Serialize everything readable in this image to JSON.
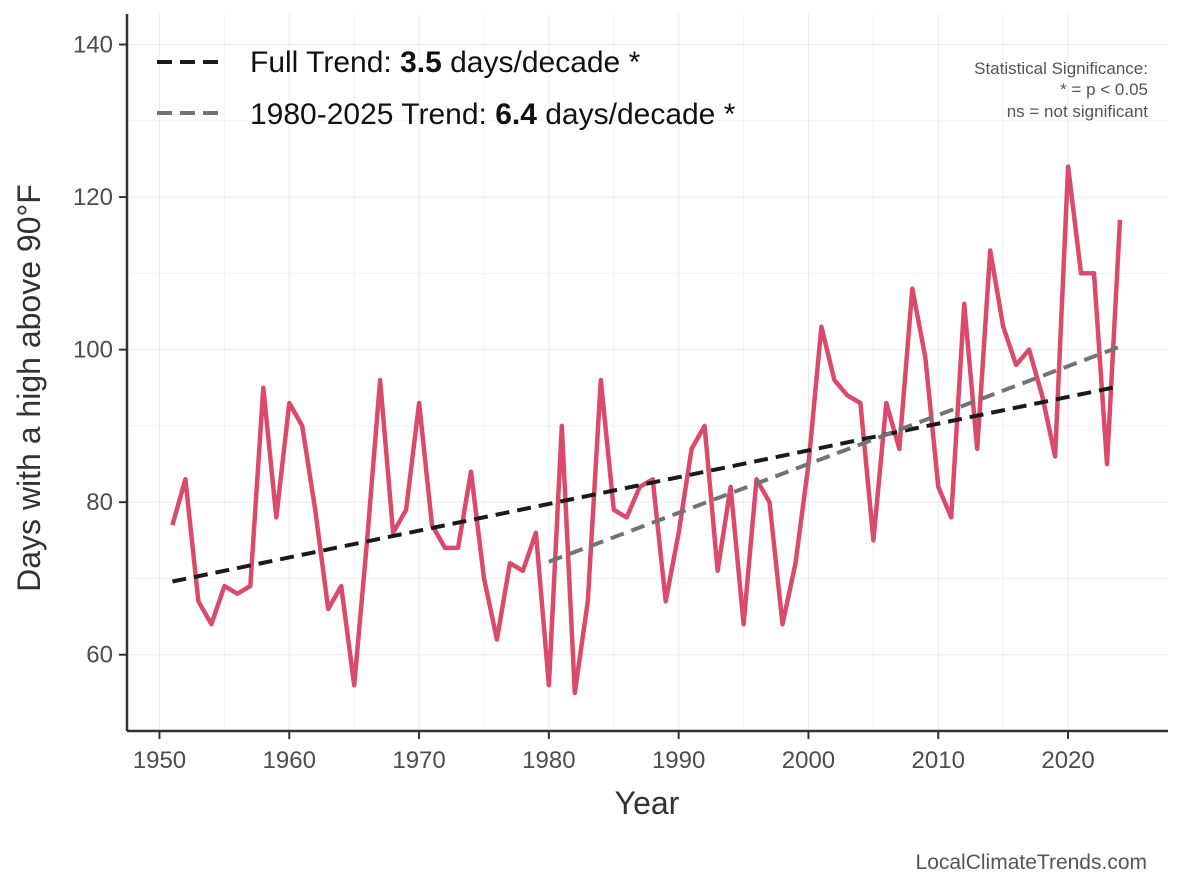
{
  "chart_data": {
    "type": "line",
    "xlabel": "Year",
    "ylabel": "Days with a high above 90°F",
    "xlim": [
      1947.5,
      2027.7
    ],
    "ylim": [
      50,
      144
    ],
    "x_ticks": [
      1950,
      1960,
      1970,
      1980,
      1990,
      2000,
      2010,
      2020
    ],
    "y_ticks": [
      60,
      80,
      100,
      120,
      140
    ],
    "grid": true,
    "legend_position": "top-left",
    "series": [
      {
        "color": "#dc4a6b",
        "x": [
          1951,
          1952,
          1953,
          1954,
          1955,
          1956,
          1957,
          1958,
          1959,
          1960,
          1961,
          1962,
          1963,
          1964,
          1965,
          1966,
          1967,
          1968,
          1969,
          1970,
          1971,
          1972,
          1973,
          1974,
          1975,
          1976,
          1977,
          1978,
          1979,
          1980,
          1981,
          1982,
          1983,
          1984,
          1985,
          1986,
          1987,
          1988,
          1989,
          1990,
          1991,
          1992,
          1993,
          1994,
          1995,
          1996,
          1997,
          1998,
          1999,
          2000,
          2001,
          2002,
          2003,
          2004,
          2005,
          2006,
          2007,
          2008,
          2009,
          2010,
          2011,
          2012,
          2013,
          2014,
          2015,
          2016,
          2017,
          2018,
          2019,
          2020,
          2021,
          2022,
          2023,
          2024
        ],
        "values": [
          77,
          83,
          67,
          64,
          69,
          68,
          69,
          95,
          78,
          93,
          90,
          79,
          66,
          69,
          56,
          75,
          96,
          76,
          79,
          93,
          77,
          74,
          74,
          84,
          70,
          62,
          72,
          71,
          76,
          56,
          90,
          55,
          67,
          96,
          79,
          78,
          82,
          83,
          67,
          76,
          87,
          90,
          71,
          82,
          64,
          83,
          80,
          64,
          72,
          85,
          103,
          96,
          94,
          93,
          75,
          93,
          87,
          108,
          99,
          82,
          78,
          106,
          87,
          113,
          103,
          98,
          100,
          94,
          86,
          124,
          110,
          110,
          85,
          117
        ]
      },
      {
        "name": "Full Trend",
        "color": "#1a1a1a",
        "dash": true,
        "x": [
          1951,
          2024
        ],
        "values": [
          69.6,
          95.2
        ]
      },
      {
        "name": "1980-2025 Trend",
        "color": "#737373",
        "dash": true,
        "x": [
          1980,
          2024
        ],
        "values": [
          72.2,
          100.4
        ]
      }
    ],
    "legend": [
      {
        "prefix": "Full Trend: ",
        "value": "3.5",
        "suffix": " days/decade *",
        "color": "#1a1a1a"
      },
      {
        "prefix": "1980-2025 Trend: ",
        "value": "6.4",
        "suffix": " days/decade *",
        "color": "#737373"
      }
    ],
    "annotation": {
      "lines": [
        "Statistical Significance:",
        "* = p < 0.05",
        "ns = not significant"
      ]
    },
    "source": "LocalClimateTrends.com"
  }
}
